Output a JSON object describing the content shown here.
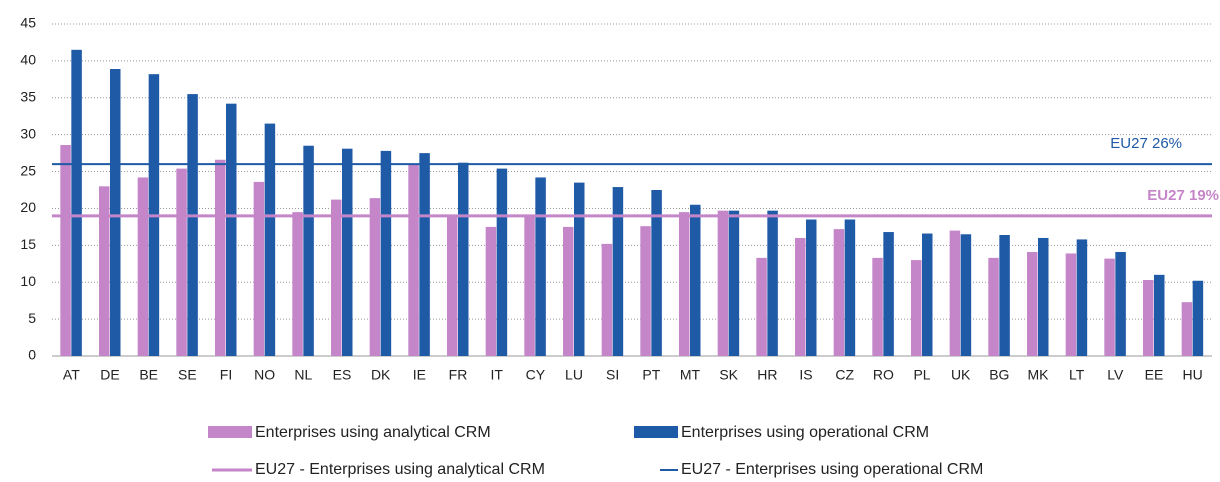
{
  "chart_data": {
    "type": "bar",
    "categories": [
      "AT",
      "DE",
      "BE",
      "SE",
      "FI",
      "NO",
      "NL",
      "ES",
      "DK",
      "IE",
      "FR",
      "IT",
      "CY",
      "LU",
      "SI",
      "PT",
      "MT",
      "SK",
      "HR",
      "IS",
      "CZ",
      "RO",
      "PL",
      "UK",
      "BG",
      "MK",
      "LT",
      "LV",
      "EE",
      "HU"
    ],
    "series": [
      {
        "name": "Enterprises using analytical CRM",
        "color": "#c586c9",
        "values": [
          28.6,
          23,
          24.2,
          25.4,
          26.6,
          23.6,
          19.5,
          21.2,
          21.4,
          26,
          19,
          17.5,
          19,
          17.5,
          15.2,
          17.6,
          19.5,
          19.7,
          13.3,
          16,
          17.2,
          13.3,
          13,
          17,
          13.3,
          14.1,
          13.9,
          13.2,
          10.3,
          7.3
        ]
      },
      {
        "name": "Enterprises using operational CRM",
        "color": "#1f5aa6",
        "values": [
          41.5,
          38.9,
          38.2,
          35.5,
          34.2,
          31.5,
          28.5,
          28.1,
          27.8,
          27.5,
          26.2,
          25.4,
          24.2,
          23.5,
          22.9,
          22.5,
          20.5,
          19.7,
          19.7,
          18.5,
          18.5,
          16.8,
          16.6,
          16.5,
          16.4,
          16,
          15.8,
          14.1,
          11,
          10.2
        ]
      }
    ],
    "reference_lines": [
      {
        "name": "EU27 - Enterprises using analytical CRM",
        "value": 19,
        "label": "EU27 19%",
        "color": "#c586c9"
      },
      {
        "name": "EU27 - Enterprises using operational CRM",
        "value": 26,
        "label": "EU27 26%",
        "color": "#1f5aa6"
      }
    ],
    "ylim": [
      0,
      45
    ],
    "yticks": [
      0,
      5,
      10,
      15,
      20,
      25,
      30,
      35,
      40,
      45
    ],
    "grid": true
  }
}
